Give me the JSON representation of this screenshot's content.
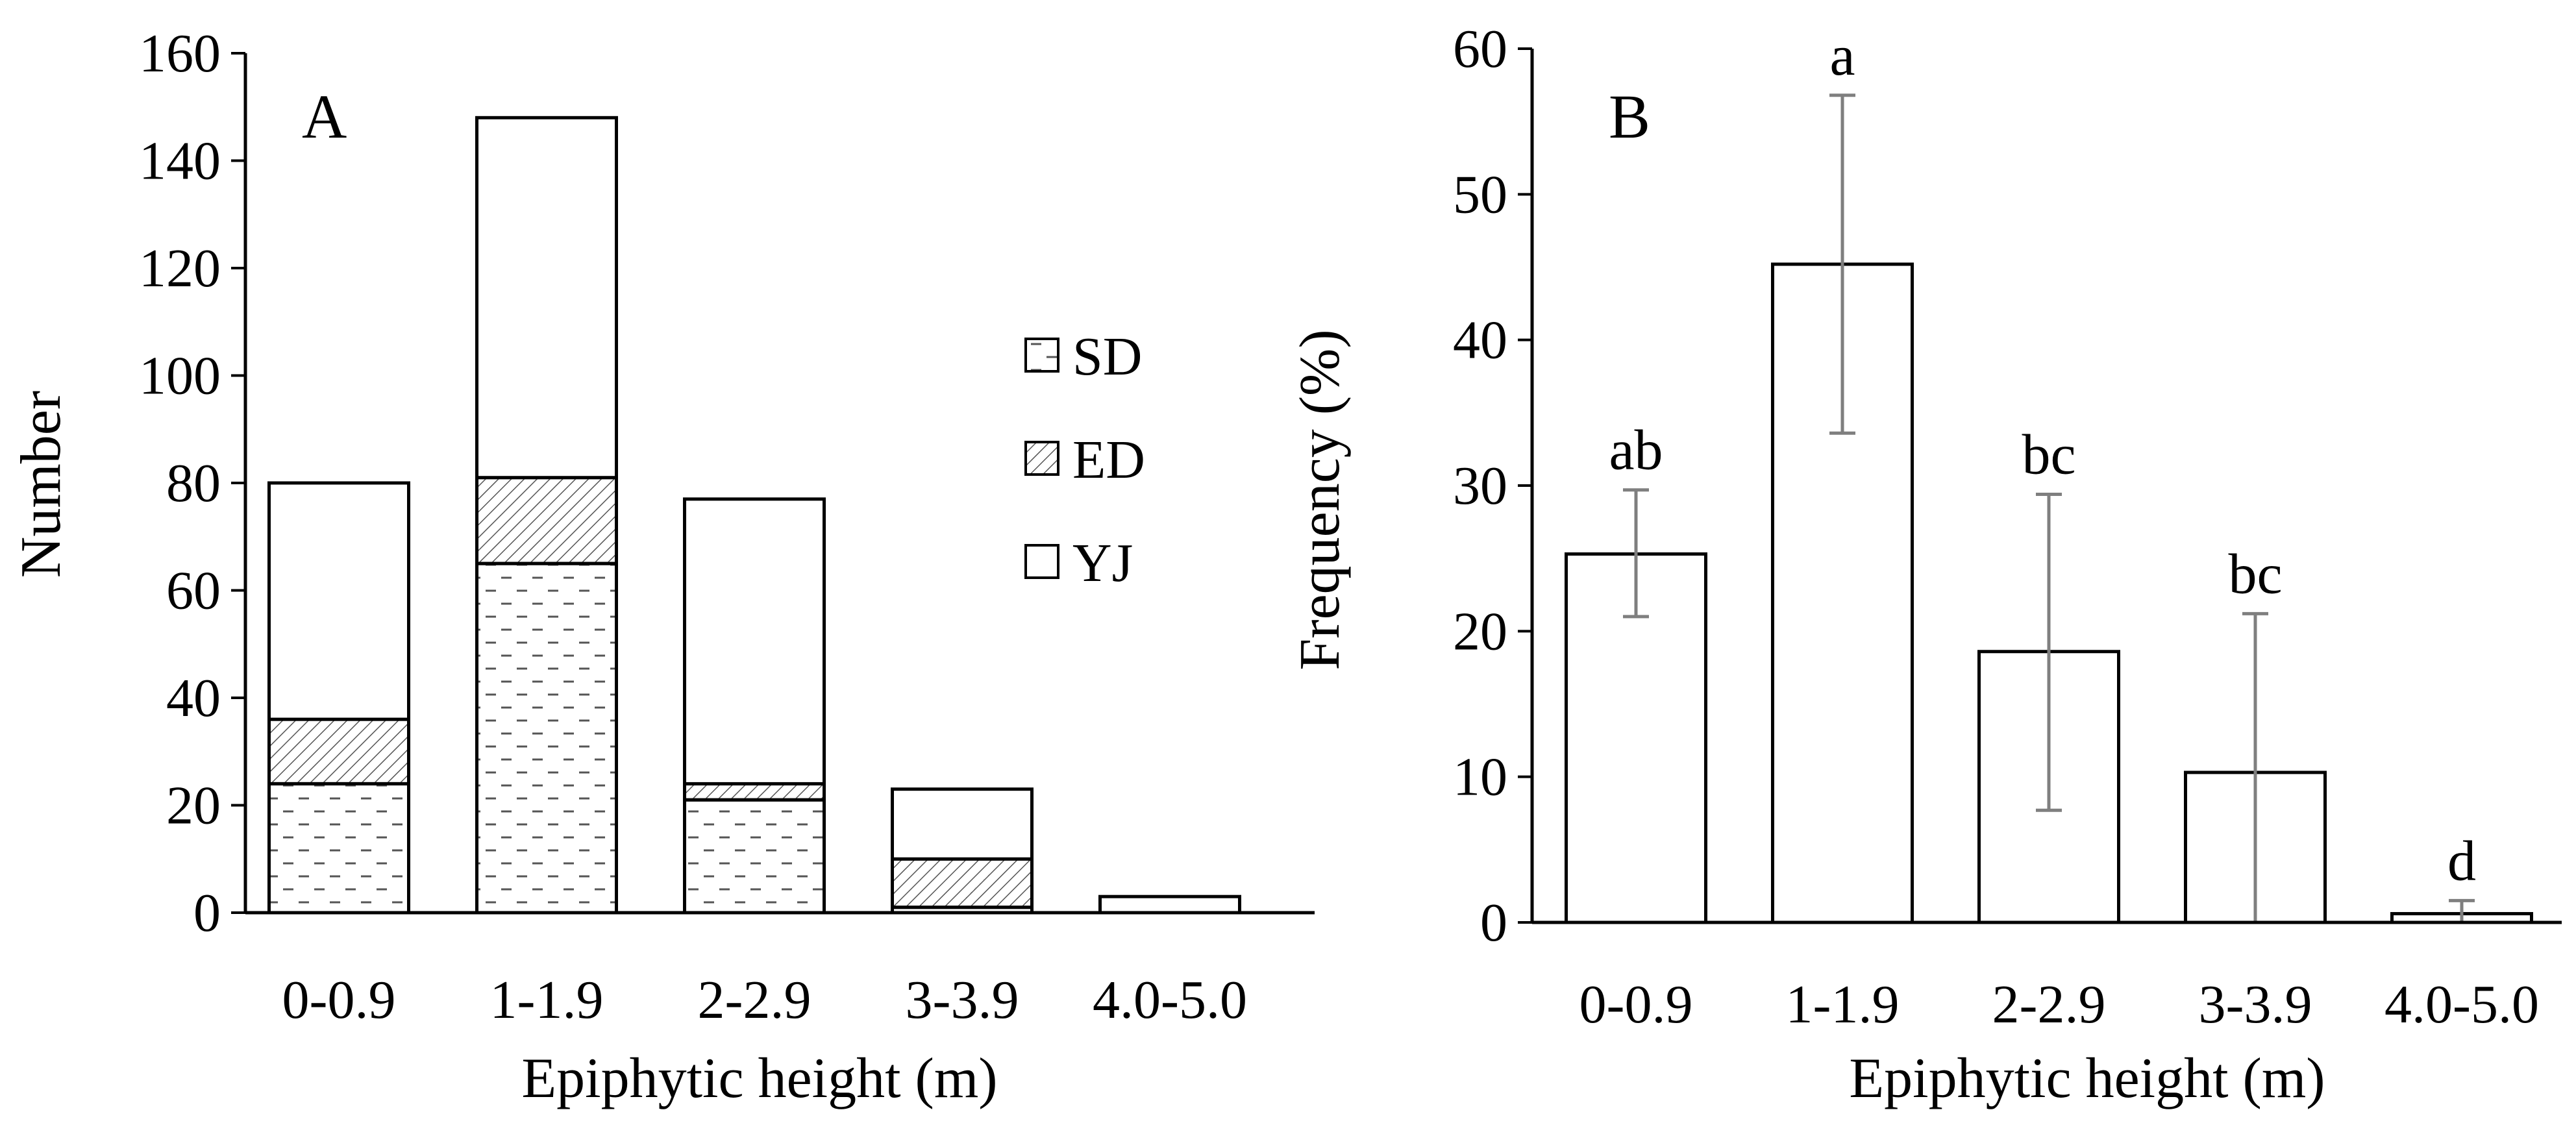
{
  "chart_data": [
    {
      "type": "bar",
      "panel_label": "A",
      "stacked": true,
      "xlabel": "Epiphytic height (m)",
      "ylabel": "Number",
      "ylim": [
        0,
        160
      ],
      "yticks": [
        0,
        20,
        40,
        60,
        80,
        100,
        120,
        140,
        160
      ],
      "categories": [
        "0-0.9",
        "1-1.9",
        "2-2.9",
        "3-3.9",
        "4.0-5.0"
      ],
      "series": [
        {
          "name": "SD",
          "pattern": "dashes",
          "values": [
            24,
            65,
            21,
            1,
            0
          ]
        },
        {
          "name": "ED",
          "pattern": "diagonal-hatch",
          "values": [
            12,
            16,
            3,
            9,
            0
          ]
        },
        {
          "name": "YJ",
          "pattern": "none",
          "values": [
            44,
            67,
            53,
            13,
            3
          ]
        }
      ],
      "legend": {
        "placement": "right",
        "order": [
          "SD",
          "ED",
          "YJ"
        ]
      }
    },
    {
      "type": "bar",
      "panel_label": "B",
      "xlabel": "Epiphytic height (m)",
      "ylabel": "Frequency (%)",
      "ylim": [
        0,
        60
      ],
      "yticks": [
        0,
        10,
        20,
        30,
        40,
        50,
        60
      ],
      "categories": [
        "0-0.9",
        "1-1.9",
        "2-2.9",
        "3-3.9",
        "4.0-5.0"
      ],
      "values": [
        25.3,
        45.2,
        18.6,
        10.3,
        0.6
      ],
      "error_low": [
        21.0,
        33.6,
        7.7,
        0,
        0
      ],
      "error_high": [
        29.7,
        56.8,
        29.4,
        21.2,
        1.5
      ],
      "significance_letters": [
        "ab",
        "a",
        "bc",
        "bc",
        "d"
      ]
    }
  ],
  "colors": {
    "axis": "#000000",
    "bar_fill": "#ffffff",
    "bar_stroke": "#000000",
    "error_bar": "#7f7f7f",
    "pattern_ink": "#555555"
  }
}
